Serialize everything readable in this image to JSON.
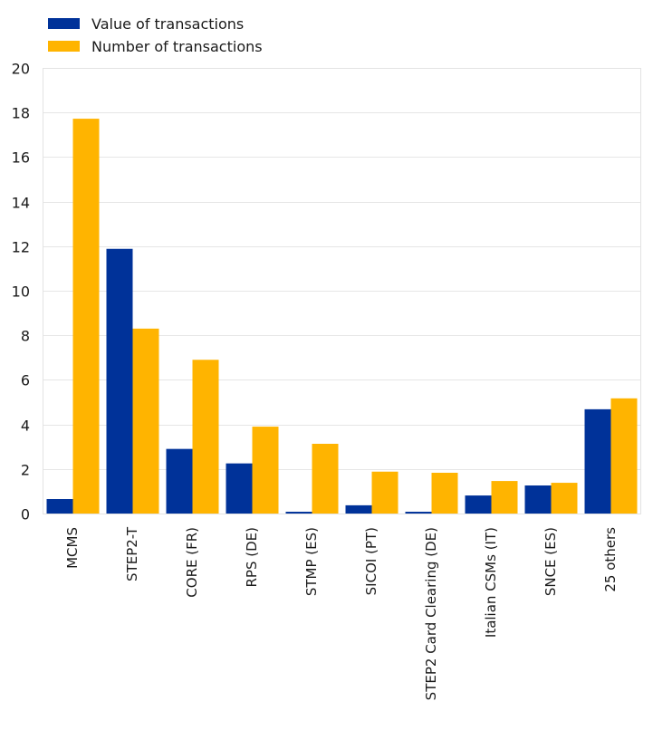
{
  "chart_data": {
    "type": "bar",
    "title": "",
    "xlabel": "",
    "ylabel": "",
    "ylim": [
      0,
      20
    ],
    "yticks": [
      0,
      2,
      4,
      6,
      8,
      10,
      12,
      14,
      16,
      18,
      20
    ],
    "grid": true,
    "legend_position": "top-left",
    "categories": [
      "MCMS",
      "STEP2-T",
      "CORE (FR)",
      "RPS (DE)",
      "STMP (ES)",
      "SICOI (PT)",
      "STEP2 Card Clearing (DE)",
      "Italian CSMs (IT)",
      "SNCE (ES)",
      "25 others"
    ],
    "series": [
      {
        "name": "Value of transactions",
        "color": "#003299",
        "values": [
          0.65,
          11.88,
          2.9,
          2.25,
          0.08,
          0.37,
          0.08,
          0.81,
          1.26,
          4.68
        ]
      },
      {
        "name": "Number of transactions",
        "color": "#FFB400",
        "values": [
          17.72,
          8.3,
          6.9,
          3.9,
          3.13,
          1.88,
          1.83,
          1.46,
          1.38,
          5.17
        ]
      }
    ]
  }
}
